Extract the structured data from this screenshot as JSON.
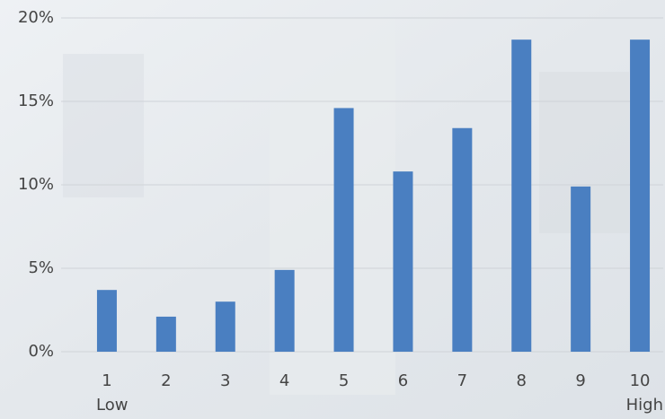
{
  "chart_data": {
    "type": "bar",
    "categories": [
      "1",
      "2",
      "3",
      "4",
      "5",
      "6",
      "7",
      "8",
      "9",
      "10"
    ],
    "values": [
      3.7,
      2.1,
      3.0,
      4.9,
      14.6,
      10.8,
      13.4,
      18.7,
      9.9,
      18.7
    ],
    "color": "#4a7fc1",
    "ylim": [
      0,
      20
    ],
    "yticks": [
      {
        "value": 0,
        "label": "0%"
      },
      {
        "value": 5,
        "label": "5%"
      },
      {
        "value": 10,
        "label": "10%"
      },
      {
        "value": 15,
        "label": "15%"
      },
      {
        "value": 20,
        "label": "20%"
      }
    ],
    "grid": true,
    "x_low_label": "Low",
    "x_high_label": "High"
  }
}
